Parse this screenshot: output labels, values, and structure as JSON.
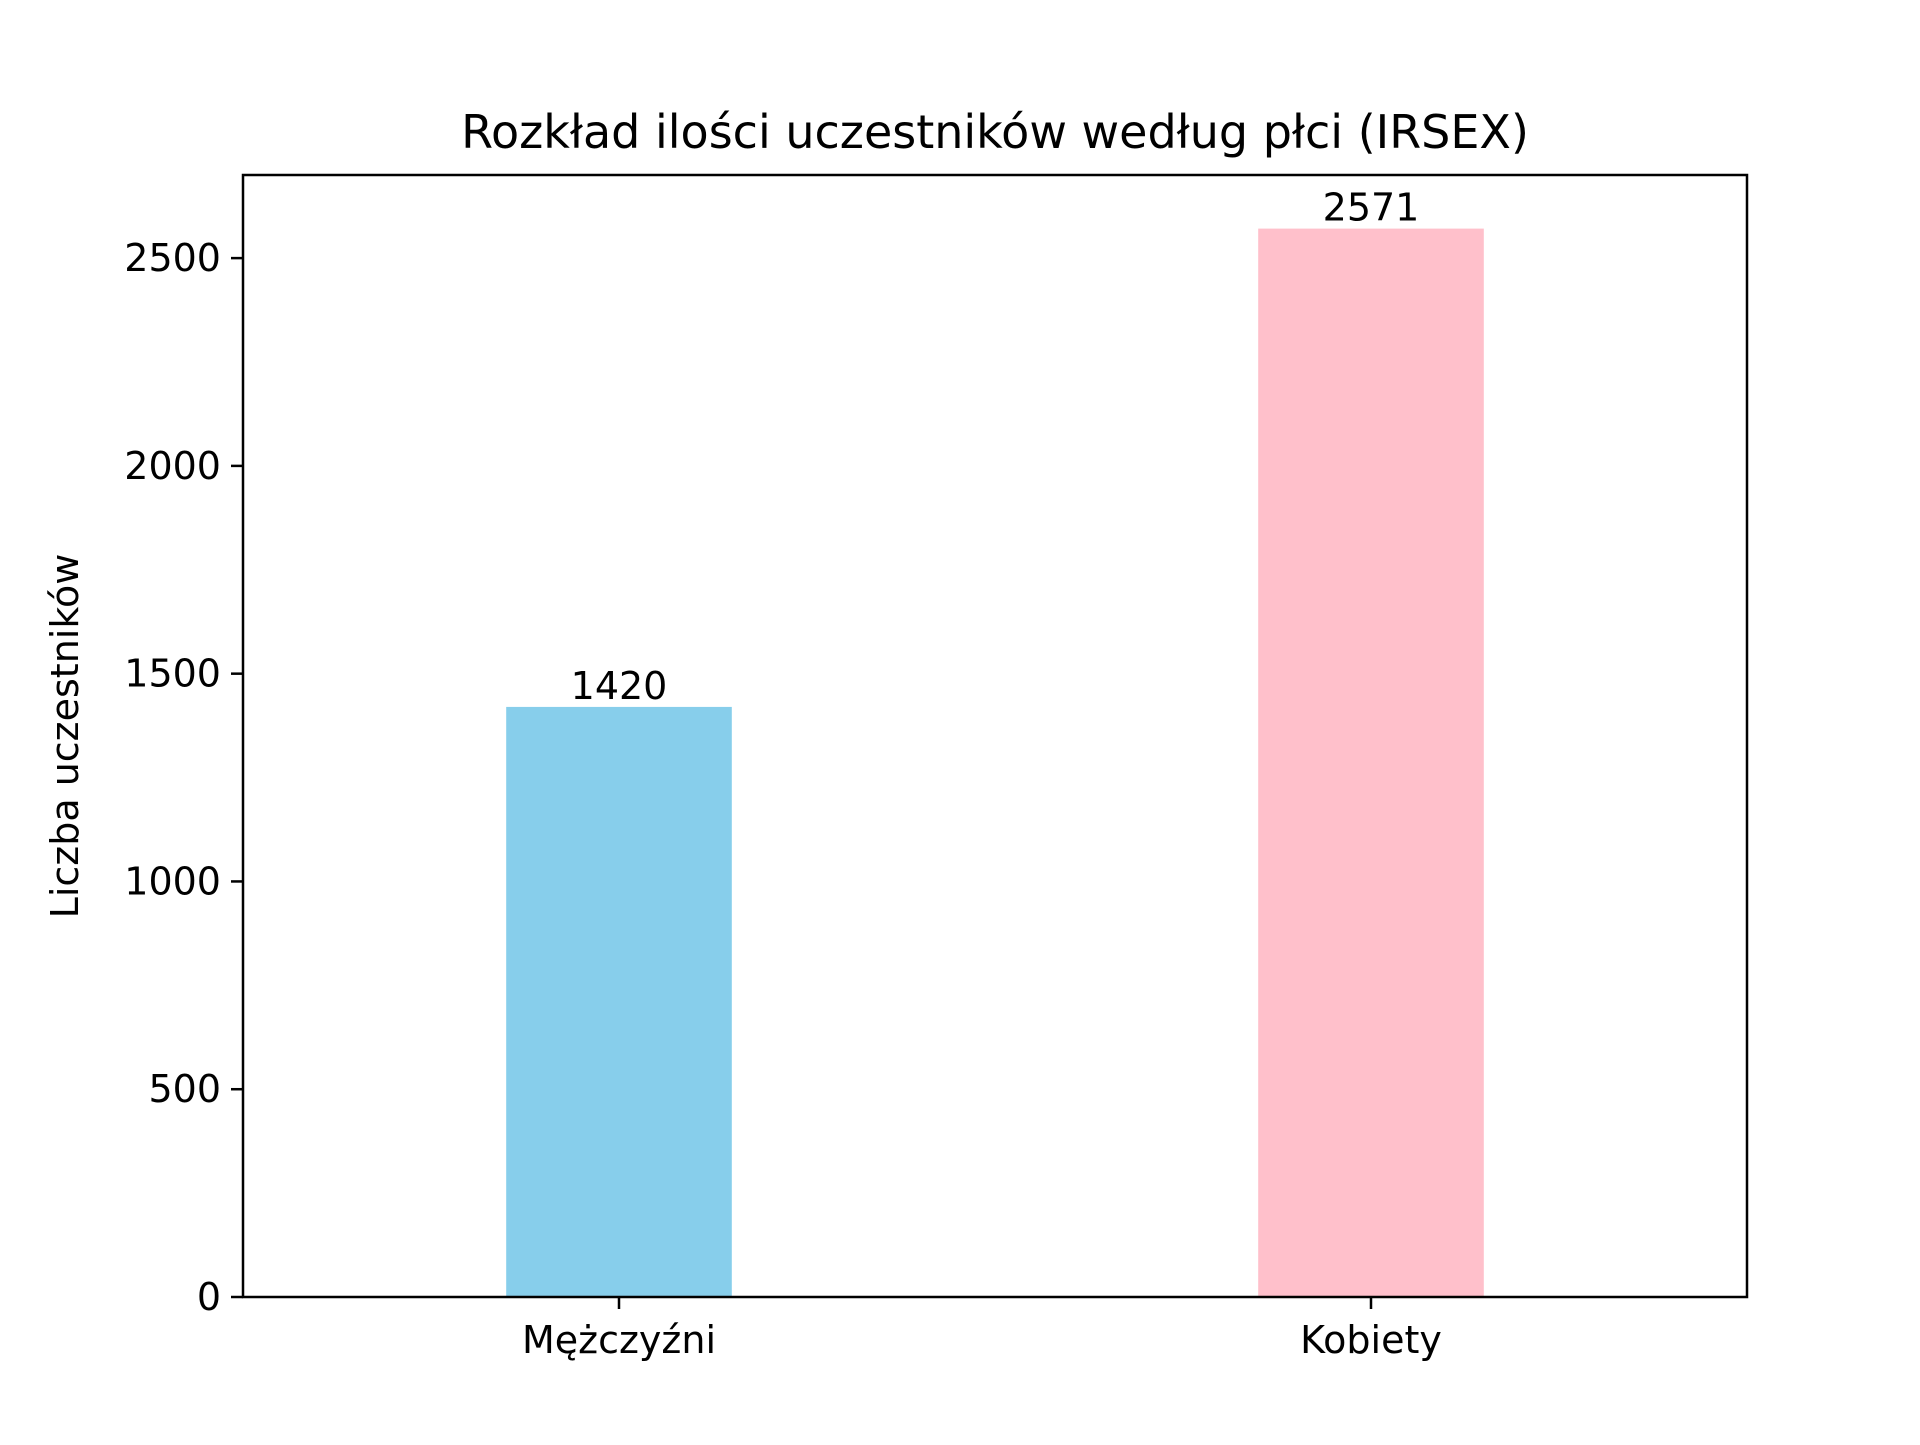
{
  "chart_data": {
    "type": "bar",
    "title": "Rozkład ilości uczestników według płci (IRSEX)",
    "xlabel": "",
    "ylabel": "Liczba uczestników",
    "categories": [
      "Mężczyźni",
      "Kobiety"
    ],
    "values": [
      1420,
      2571
    ],
    "colors": [
      "#87CEEB",
      "#FFC0CB"
    ],
    "data_labels": [
      "1420",
      "2571"
    ],
    "ylim": [
      0,
      2700
    ],
    "yticks": [
      0,
      500,
      1000,
      1500,
      2000,
      2500
    ],
    "ytick_labels": [
      "0",
      "500",
      "1000",
      "1500",
      "2000",
      "2500"
    ],
    "grid": false,
    "legend": "none"
  }
}
